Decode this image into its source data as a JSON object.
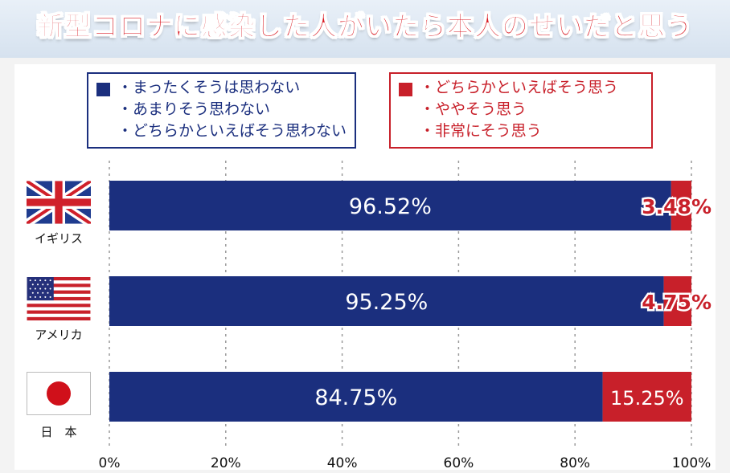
{
  "title": "新型コロナに感染した人がいたら本人のせいだと思う",
  "legend": {
    "negative": {
      "color": "#1b2f7e",
      "items": [
        "・まったくそうは思わない",
        "・あまりそう思わない",
        "・どちらかといえばそう思わない"
      ]
    },
    "positive": {
      "color": "#c8202a",
      "items": [
        "・どちらかといえばそう思う",
        "・ややそう思う",
        "・非常にそう思う"
      ]
    }
  },
  "countries": [
    {
      "label": "イギリス",
      "flag": "uk-flag-icon"
    },
    {
      "label": "アメリカ",
      "flag": "us-flag-icon"
    },
    {
      "label": "日　本",
      "flag": "japan-flag-icon"
    }
  ],
  "chart_data": {
    "type": "bar",
    "orientation": "horizontal",
    "stacked": true,
    "categories": [
      "イギリス",
      "アメリカ",
      "日　本"
    ],
    "series": [
      {
        "values": [
          96.52,
          95.25,
          84.75
        ],
        "labels": [
          "96.52%",
          "95.25%",
          "84.75%"
        ],
        "color": "#1b2f7e"
      },
      {
        "values": [
          3.48,
          4.75,
          15.25
        ],
        "labels": [
          "3.48%",
          "4.75%",
          "15.25%"
        ],
        "color": "#c8202a"
      }
    ],
    "xlim": [
      0,
      100
    ],
    "xticks": [
      "0%",
      "20%",
      "40%",
      "60%",
      "80%",
      "100%"
    ],
    "grid": true,
    "legend_placement": "top"
  }
}
